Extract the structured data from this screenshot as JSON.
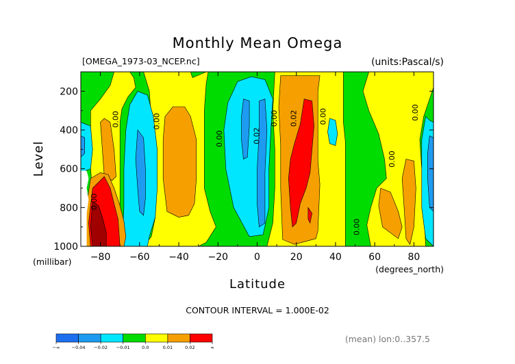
{
  "header": {
    "title": "Monthly Mean Omega",
    "file": "[OMEGA_1973-03_NCEP.nc]",
    "units": "(units:Pascal/s)"
  },
  "footer": {
    "contour_interval": "CONTOUR INTERVAL = 1.000E-02",
    "mean_note": "(mean) lon:0..357.5"
  },
  "colors": {
    "c1": "#1e6ff0",
    "c2": "#1e9bf0",
    "c3": "#00e6ff",
    "c4": "#00dc00",
    "c5": "#ffff00",
    "c6": "#f5a000",
    "c7": "#ff0000",
    "c8": "#a00000"
  },
  "chart_data": {
    "type": "contour",
    "title": "Monthly Mean Omega",
    "xlabel": "Latitude",
    "xunit": "(degrees_north)",
    "ylabel": "Level",
    "yunit": "(millibar)",
    "xlim": [
      -90,
      90
    ],
    "ylim": [
      1000,
      100
    ],
    "xticks": [
      -80,
      -60,
      -40,
      -20,
      0,
      20,
      40,
      60,
      80
    ],
    "yticks": [
      200,
      400,
      600,
      800,
      1000
    ],
    "contour_interval": 0.01,
    "contour_labels": [
      {
        "text": "0.00",
        "lat": -82,
        "lev": 770
      },
      {
        "text": "0.00",
        "lat": -71,
        "lev": 345
      },
      {
        "text": "0.00",
        "lat": -50,
        "lev": 355
      },
      {
        "text": "0.00",
        "lat": -18,
        "lev": 445
      },
      {
        "text": "0.02",
        "lat": 1,
        "lev": 430
      },
      {
        "text": "0.00",
        "lat": 10,
        "lev": 340
      },
      {
        "text": "0.02",
        "lat": 20,
        "lev": 340
      },
      {
        "text": "0.00",
        "lat": 35,
        "lev": 330
      },
      {
        "text": "0.00",
        "lat": 52,
        "lev": 900
      },
      {
        "text": "0.00",
        "lat": 70,
        "lev": 550
      },
      {
        "text": "0.00",
        "lat": 82,
        "lev": 310
      }
    ],
    "bands": [
      {
        "key": "band_green",
        "color": "#00dc00",
        "polygons": [
          [
            [
              -90,
              100
            ],
            [
              90,
              100
            ],
            [
              90,
              1000
            ],
            [
              -90,
              1000
            ]
          ]
        ]
      },
      {
        "key": "band_yellow",
        "color": "#ffff00",
        "polygons": [
          [
            [
              -73,
              100
            ],
            [
              -65,
              100
            ],
            [
              -63,
              130
            ],
            [
              -62,
              180
            ],
            [
              -66,
              230
            ],
            [
              -69,
              290
            ],
            [
              -70,
              360
            ],
            [
              -70,
              500
            ],
            [
              -70,
              800
            ],
            [
              -70,
              1000
            ],
            [
              -80,
              1000
            ],
            [
              -83,
              850
            ],
            [
              -85,
              600
            ],
            [
              -85,
              300
            ],
            [
              -80,
              240
            ],
            [
              -75,
              170
            ]
          ],
          [
            [
              -58,
              100
            ],
            [
              -34,
              100
            ],
            [
              -33,
              130
            ],
            [
              -26,
              100
            ],
            [
              -25,
              100
            ],
            [
              -26,
              160
            ],
            [
              -27,
              300
            ],
            [
              -27,
              500
            ],
            [
              -27,
              700
            ],
            [
              -24,
              820
            ],
            [
              -21,
              900
            ],
            [
              -26,
              980
            ],
            [
              -30,
              1000
            ],
            [
              -58,
              1000
            ],
            [
              -54,
              950
            ],
            [
              -52,
              850
            ],
            [
              -53,
              700
            ],
            [
              -55,
              500
            ],
            [
              -54,
              350
            ],
            [
              -55,
              200
            ]
          ],
          [
            [
              9,
              100
            ],
            [
              44,
              100
            ],
            [
              44,
              200
            ],
            [
              44,
              360
            ],
            [
              45,
              460
            ],
            [
              45,
              640
            ],
            [
              45,
              960
            ],
            [
              45,
              1000
            ],
            [
              5,
              1000
            ],
            [
              8,
              880
            ],
            [
              9,
              700
            ],
            [
              9,
              500
            ],
            [
              8,
              300
            ]
          ],
          [
            [
              57,
              100
            ],
            [
              90,
              100
            ],
            [
              90,
              180
            ],
            [
              85,
              330
            ],
            [
              83,
              450
            ],
            [
              84,
              600
            ],
            [
              85,
              800
            ],
            [
              86,
              1000
            ],
            [
              58,
              1000
            ],
            [
              56,
              890
            ],
            [
              58,
              800
            ],
            [
              61,
              700
            ],
            [
              66,
              650
            ],
            [
              65,
              550
            ],
            [
              62,
              420
            ],
            [
              57,
              300
            ],
            [
              54,
              200
            ]
          ]
        ]
      },
      {
        "key": "band_cyan",
        "color": "#00e6ff",
        "polygons": [
          [
            [
              -61,
              200
            ],
            [
              -56,
              220
            ],
            [
              -53,
              330
            ],
            [
              -51,
              500
            ],
            [
              -51,
              700
            ],
            [
              -52,
              850
            ],
            [
              -55,
              950
            ],
            [
              -56,
              1000
            ],
            [
              -69,
              1000
            ],
            [
              -68,
              800
            ],
            [
              -68,
              600
            ],
            [
              -67,
              400
            ],
            [
              -65,
              270
            ]
          ],
          [
            [
              -10,
              150
            ],
            [
              -3,
              125
            ],
            [
              4,
              140
            ],
            [
              8,
              240
            ],
            [
              7,
              400
            ],
            [
              6,
              600
            ],
            [
              6,
              800
            ],
            [
              3,
              940
            ],
            [
              -4,
              950
            ],
            [
              -12,
              800
            ],
            [
              -16,
              600
            ],
            [
              -17,
              400
            ],
            [
              -15,
              260
            ]
          ],
          [
            [
              -90,
              360
            ],
            [
              -85,
              380
            ],
            [
              -84,
              500
            ],
            [
              -85,
              600
            ],
            [
              -90,
              620
            ]
          ],
          [
            [
              86,
              330
            ],
            [
              88,
              350
            ],
            [
              90,
              360
            ],
            [
              90,
              1000
            ],
            [
              86,
              960
            ],
            [
              84,
              800
            ],
            [
              84,
              600
            ],
            [
              84,
              450
            ]
          ],
          [
            [
              37,
              340
            ],
            [
              40,
              350
            ],
            [
              41,
              420
            ],
            [
              40,
              480
            ],
            [
              37,
              470
            ],
            [
              36,
              410
            ]
          ]
        ]
      },
      {
        "key": "band_blue",
        "color": "#1e9bf0",
        "polygons": [
          [
            [
              -61,
              400
            ],
            [
              -58,
              440
            ],
            [
              -57,
              600
            ],
            [
              -57,
              750
            ],
            [
              -58,
              840
            ],
            [
              -60,
              820
            ],
            [
              -61,
              700
            ],
            [
              -62,
              550
            ]
          ],
          [
            [
              -7,
              240
            ],
            [
              -4,
              250
            ],
            [
              -4,
              380
            ],
            [
              -5,
              540
            ],
            [
              -7,
              550
            ],
            [
              -8,
              450
            ],
            [
              -8,
              330
            ]
          ],
          [
            [
              1,
              250
            ],
            [
              4,
              240
            ],
            [
              5,
              400
            ],
            [
              4,
              620
            ],
            [
              4,
              880
            ],
            [
              1,
              900
            ],
            [
              0,
              780
            ],
            [
              0,
              600
            ],
            [
              1,
              420
            ]
          ],
          [
            [
              88,
              430
            ],
            [
              90,
              440
            ],
            [
              90,
              820
            ],
            [
              88,
              800
            ],
            [
              87,
              650
            ],
            [
              87,
              520
            ]
          ],
          [
            [
              -90,
              430
            ],
            [
              -88,
              440
            ],
            [
              -88,
              520
            ],
            [
              -90,
              540
            ]
          ]
        ]
      },
      {
        "key": "band_orange",
        "color": "#f5a000",
        "polygons": [
          [
            [
              -80,
              360
            ],
            [
              -78,
              340
            ],
            [
              -75,
              360
            ],
            [
              -73,
              500
            ],
            [
              -72,
              640
            ],
            [
              -74,
              660
            ],
            [
              -78,
              640
            ]
          ],
          [
            [
              -80,
              620
            ],
            [
              -76,
              630
            ],
            [
              -73,
              700
            ],
            [
              -70,
              790
            ],
            [
              -68,
              870
            ],
            [
              -67,
              950
            ],
            [
              -68,
              1000
            ],
            [
              -89,
              1000
            ],
            [
              -88,
              850
            ],
            [
              -85,
              650
            ]
          ],
          [
            [
              -43,
              280
            ],
            [
              -37,
              280
            ],
            [
              -34,
              330
            ],
            [
              -31,
              450
            ],
            [
              -31,
              650
            ],
            [
              -32,
              780
            ],
            [
              -35,
              840
            ],
            [
              -40,
              850
            ],
            [
              -46,
              820
            ],
            [
              -48,
              650
            ],
            [
              -48,
              450
            ],
            [
              -47,
              330
            ]
          ],
          [
            [
              12,
              120
            ],
            [
              32,
              120
            ],
            [
              31,
              200
            ],
            [
              31,
              380
            ],
            [
              31,
              560
            ],
            [
              32,
              680
            ],
            [
              31,
              920
            ],
            [
              30,
              960
            ],
            [
              19,
              990
            ],
            [
              13,
              965
            ],
            [
              12,
              700
            ],
            [
              12,
              480
            ],
            [
              11,
              280
            ]
          ],
          [
            [
              63,
              700
            ],
            [
              68,
              720
            ],
            [
              72,
              820
            ],
            [
              74,
              900
            ],
            [
              72,
              960
            ],
            [
              64,
              900
            ],
            [
              62,
              790
            ]
          ],
          [
            [
              76,
              550
            ],
            [
              80,
              560
            ],
            [
              81,
              700
            ],
            [
              80,
              900
            ],
            [
              78,
              990
            ],
            [
              76,
              960
            ],
            [
              75,
              800
            ],
            [
              74,
              650
            ]
          ]
        ]
      },
      {
        "key": "band_red",
        "color": "#ff0000",
        "polygons": [
          [
            [
              -84,
              700
            ],
            [
              -78,
              640
            ],
            [
              -75,
              700
            ],
            [
              -73,
              780
            ],
            [
              -71,
              860
            ],
            [
              -70,
              1000
            ],
            [
              -85,
              1000
            ],
            [
              -86,
              880
            ]
          ],
          [
            [
              24,
              240
            ],
            [
              28,
              250
            ],
            [
              29,
              380
            ],
            [
              28,
              500
            ],
            [
              27,
              620
            ],
            [
              25,
              700
            ],
            [
              22,
              780
            ],
            [
              20,
              880
            ],
            [
              18,
              900
            ],
            [
              17,
              800
            ],
            [
              16,
              650
            ],
            [
              17,
              550
            ],
            [
              19,
              470
            ],
            [
              22,
              370
            ]
          ],
          [
            [
              26,
              800
            ],
            [
              28,
              830
            ],
            [
              27,
              880
            ],
            [
              26,
              860
            ]
          ]
        ]
      },
      {
        "key": "band_darkred",
        "color": "#a00000",
        "polygons": [
          [
            [
              -84,
              770
            ],
            [
              -81,
              790
            ],
            [
              -79,
              850
            ],
            [
              -77,
              930
            ],
            [
              -77,
              1000
            ],
            [
              -84,
              1000
            ],
            [
              -85,
              900
            ]
          ]
        ]
      },
      {
        "key": "band_missing",
        "color": "#ffffff",
        "polygons": [
          [
            [
              -90,
              610
            ],
            [
              -87,
              610
            ],
            [
              -86,
              650
            ],
            [
              -87,
              700
            ],
            [
              -86,
              760
            ],
            [
              -87,
              830
            ],
            [
              -87,
              1000
            ],
            [
              -90,
              1000
            ]
          ]
        ]
      }
    ],
    "colorbar": {
      "colors": [
        "#1e6ff0",
        "#1e9bf0",
        "#00e6ff",
        "#00dc00",
        "#ffff00",
        "#f5a000",
        "#ff0000"
      ],
      "tick_labels": [
        "-∞",
        "-0.04",
        "-0.02",
        "-0.01",
        "0.0",
        "0.01",
        "0.02",
        "∞"
      ]
    }
  }
}
